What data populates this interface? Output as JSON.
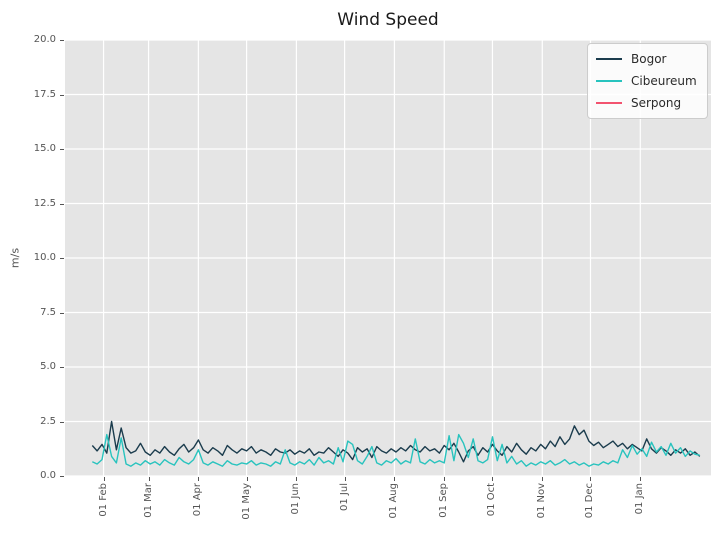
{
  "chart_data": {
    "type": "line",
    "title": "Wind Speed",
    "xlabel": "",
    "ylabel": "m/s",
    "ylim": [
      0,
      20
    ],
    "yticks": [
      0,
      2.5,
      5,
      7.5,
      10,
      12.5,
      15,
      17.5,
      20
    ],
    "ytick_labels": [
      "0.0",
      "2.5",
      "5.0",
      "7.5",
      "10.0",
      "12.5",
      "15.0",
      "17.5",
      "20.0"
    ],
    "xtick_labels": [
      "01 Feb",
      "01 Mar",
      "01 Apr",
      "01 May",
      "01 Jun",
      "01 Jul",
      "01 Aug",
      "01 Sep",
      "01 Oct",
      "01 Nov",
      "01 Dec",
      "01 Jan"
    ],
    "xtick_days": [
      7,
      35,
      66,
      96,
      127,
      157,
      188,
      219,
      249,
      280,
      310,
      341
    ],
    "xlim_days": [
      -17,
      385
    ],
    "x_step_days": 3,
    "grid": true,
    "legend_position": "upper right",
    "colors": {
      "figure_background": "#ffffff",
      "axes_background": "#e5e5e5",
      "gridline": "#ffffff",
      "tick_text": "#555555",
      "title_text": "#1a1a1a"
    },
    "series": [
      {
        "name": "Bogor",
        "color": "#1b3c4d",
        "values": [
          1.4,
          1.15,
          1.45,
          1.05,
          2.5,
          1.2,
          2.2,
          1.3,
          1.05,
          1.15,
          1.5,
          1.1,
          0.95,
          1.2,
          1.05,
          1.35,
          1.1,
          0.95,
          1.25,
          1.45,
          1.1,
          1.3,
          1.65,
          1.2,
          1.05,
          1.3,
          1.15,
          0.95,
          1.4,
          1.2,
          1.05,
          1.25,
          1.15,
          1.35,
          1.05,
          1.2,
          1.1,
          0.95,
          1.25,
          1.1,
          1.05,
          1.2,
          1.0,
          1.15,
          1.05,
          1.25,
          0.95,
          1.1,
          1.05,
          1.3,
          1.1,
          0.9,
          1.2,
          1.05,
          0.75,
          1.3,
          1.1,
          1.25,
          0.85,
          1.35,
          1.15,
          1.05,
          1.25,
          1.1,
          1.3,
          1.15,
          1.4,
          1.2,
          1.1,
          1.35,
          1.15,
          1.25,
          1.05,
          1.4,
          1.2,
          1.5,
          1.1,
          0.65,
          1.15,
          1.35,
          0.95,
          1.3,
          1.1,
          1.45,
          1.15,
          0.95,
          1.35,
          1.1,
          1.5,
          1.2,
          1.0,
          1.3,
          1.15,
          1.45,
          1.25,
          1.6,
          1.35,
          1.8,
          1.45,
          1.7,
          2.3,
          1.9,
          2.1,
          1.6,
          1.4,
          1.55,
          1.3,
          1.45,
          1.6,
          1.35,
          1.5,
          1.25,
          1.45,
          1.3,
          1.15,
          1.7,
          1.25,
          1.05,
          1.3,
          1.15,
          0.95,
          1.2,
          1.05,
          1.25,
          0.95,
          1.1,
          0.9
        ]
      },
      {
        "name": "Cibeureum",
        "color": "#28c3be",
        "values": [
          0.65,
          0.55,
          0.75,
          1.9,
          0.9,
          0.6,
          1.75,
          0.55,
          0.45,
          0.6,
          0.5,
          0.7,
          0.55,
          0.65,
          0.5,
          0.75,
          0.6,
          0.5,
          0.85,
          0.65,
          0.55,
          0.75,
          1.2,
          0.6,
          0.5,
          0.65,
          0.55,
          0.45,
          0.7,
          0.55,
          0.5,
          0.6,
          0.55,
          0.7,
          0.5,
          0.6,
          0.55,
          0.45,
          0.65,
          0.55,
          1.2,
          0.6,
          0.5,
          0.65,
          0.55,
          0.75,
          0.5,
          0.85,
          0.6,
          0.7,
          0.55,
          1.3,
          0.65,
          1.6,
          1.45,
          0.7,
          0.55,
          0.9,
          1.35,
          0.6,
          0.5,
          0.7,
          0.6,
          0.8,
          0.55,
          0.7,
          0.6,
          1.7,
          0.65,
          0.55,
          0.75,
          0.6,
          0.7,
          0.6,
          1.85,
          0.7,
          1.9,
          1.5,
          0.85,
          1.7,
          0.7,
          0.6,
          0.75,
          1.8,
          0.7,
          1.45,
          0.6,
          0.9,
          0.55,
          0.7,
          0.45,
          0.6,
          0.5,
          0.65,
          0.55,
          0.7,
          0.5,
          0.6,
          0.75,
          0.55,
          0.65,
          0.5,
          0.6,
          0.45,
          0.55,
          0.5,
          0.65,
          0.55,
          0.7,
          0.6,
          1.2,
          0.85,
          1.4,
          1.0,
          1.25,
          0.9,
          1.55,
          1.1,
          1.35,
          0.95,
          1.5,
          1.05,
          1.3,
          0.9,
          1.15,
          1.0,
          0.95
        ]
      },
      {
        "name": "Serpong",
        "color": "#f2536f",
        "values": []
      }
    ]
  }
}
